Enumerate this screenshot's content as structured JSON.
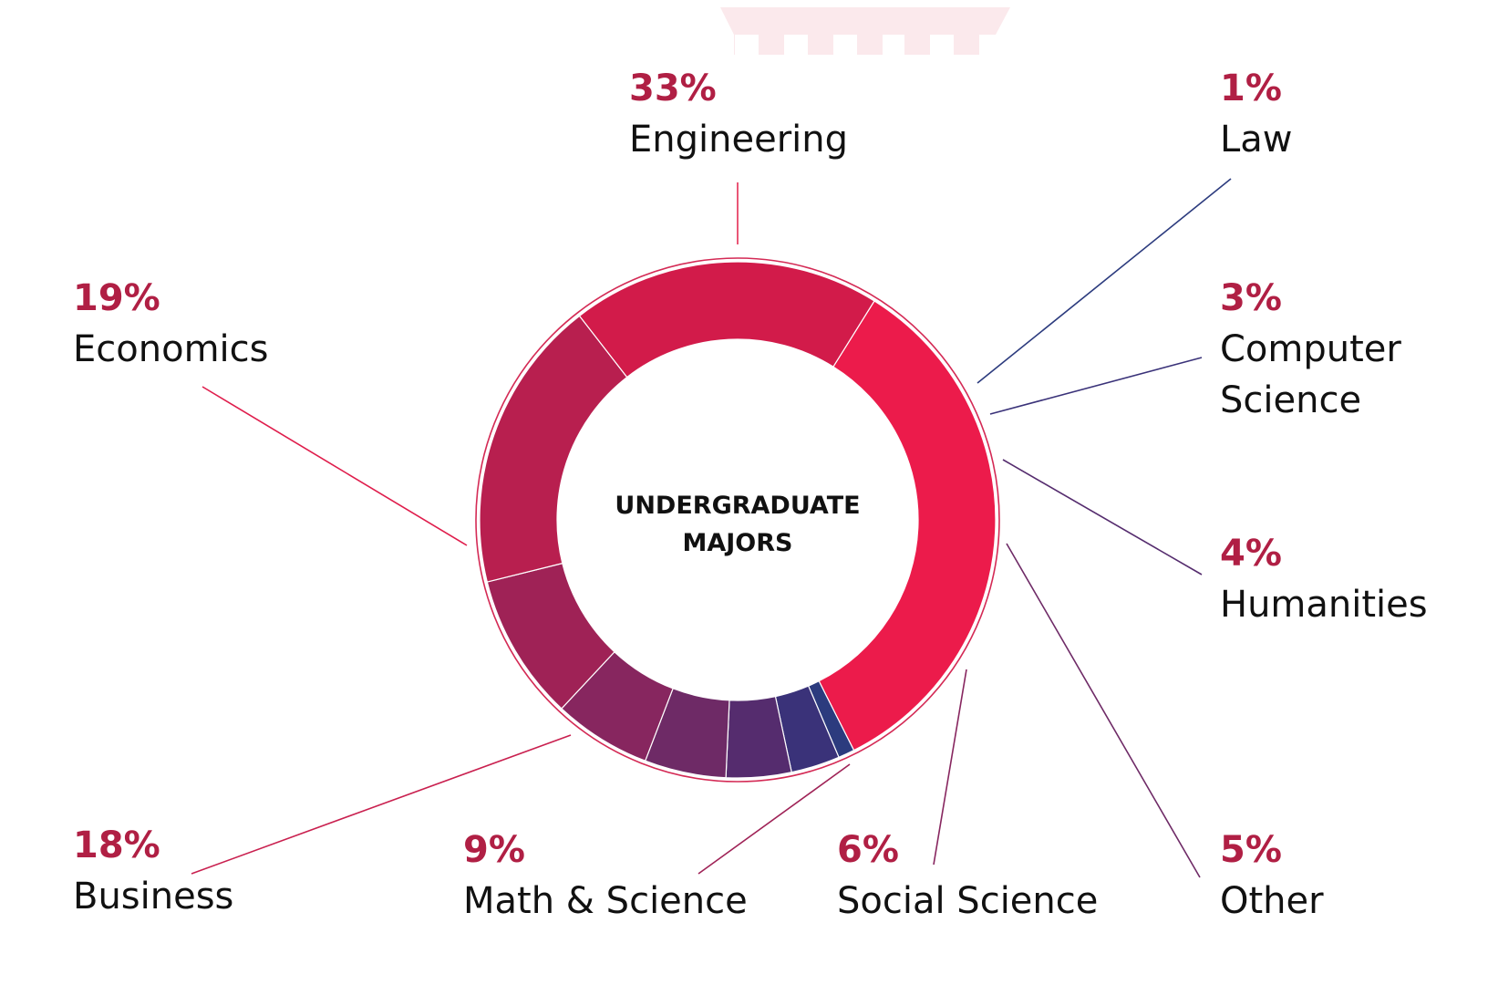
{
  "chart_data": {
    "type": "pie",
    "center_label": [
      "UNDERGRADUATE",
      "MAJORS"
    ],
    "slices": [
      {
        "label": "Engineering",
        "value": 33,
        "pct_text": "33%",
        "color": "#ec1b4b",
        "leader": "#e52b55"
      },
      {
        "label": "Law",
        "value": 1,
        "pct_text": "1%",
        "color": "#2c3b7e",
        "leader": "#2c3b7e"
      },
      {
        "label": "Computer Science",
        "value": 3,
        "pct_text": "3%",
        "color": "#3a3279",
        "leader": "#3a3279"
      },
      {
        "label": "Humanities",
        "value": 4,
        "pct_text": "4%",
        "color": "#552c6e",
        "leader": "#552c6e"
      },
      {
        "label": "Other",
        "value": 5,
        "pct_text": "5%",
        "color": "#6e2a66",
        "leader": "#6e2a66"
      },
      {
        "label": "Social Science",
        "value": 6,
        "pct_text": "6%",
        "color": "#87265f",
        "leader": "#87265f"
      },
      {
        "label": "Math & Science",
        "value": 9,
        "pct_text": "9%",
        "color": "#9f2256",
        "leader": "#9f2256"
      },
      {
        "label": "Business",
        "value": 18,
        "pct_text": "18%",
        "color": "#b81f4f",
        "leader": "#c9204f"
      },
      {
        "label": "Economics",
        "value": 19,
        "pct_text": "19%",
        "color": "#d21b4a",
        "leader": "#df1d4c"
      }
    ]
  },
  "colors": {
    "percent_text": "#b01f44",
    "label_text": "#111111",
    "outer_ring": "#d42a55",
    "deco_shape": "#fbe9ec"
  }
}
